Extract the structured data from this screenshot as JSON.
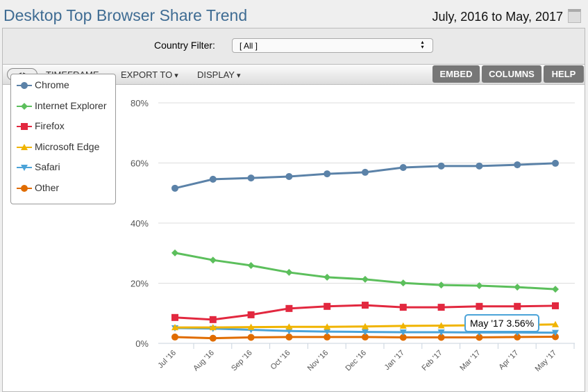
{
  "header": {
    "title": "Desktop Top Browser Share Trend",
    "date_range": "July, 2016 to May, 2017"
  },
  "filter": {
    "label": "Country Filter:",
    "value": "[ All ]"
  },
  "toolbar": {
    "timeframe": "TIMEFRAME",
    "export": "EXPORT TO",
    "display": "DISPLAY",
    "embed": "EMBED",
    "columns": "COLUMNS",
    "help": "HELP"
  },
  "tooltip": "May '17 3.56%",
  "chart_data": {
    "type": "line",
    "title": "Desktop Top Browser Share Trend",
    "xlabel": "",
    "ylabel": "",
    "ylim": [
      0,
      80
    ],
    "yticks": [
      "0%",
      "20%",
      "40%",
      "60%",
      "80%"
    ],
    "legend_position": "left",
    "categories": [
      "Jul '16",
      "Aug '16",
      "Sep '16",
      "Oct '16",
      "Nov '16",
      "Dec '16",
      "Jan '17",
      "Feb '17",
      "Mar '17",
      "Apr '17",
      "May '17"
    ],
    "series": [
      {
        "name": "Chrome",
        "color": "#5b82a8",
        "marker": "circle",
        "values": [
          51.6,
          54.6,
          55.0,
          55.5,
          56.4,
          56.9,
          58.5,
          59.0,
          59.0,
          59.4,
          59.9
        ]
      },
      {
        "name": "Internet Explorer",
        "color": "#5cbf5c",
        "marker": "diamond",
        "values": [
          30.1,
          27.7,
          25.9,
          23.6,
          22.0,
          21.3,
          20.1,
          19.4,
          19.2,
          18.7,
          18.0
        ]
      },
      {
        "name": "Firefox",
        "color": "#e2283f",
        "marker": "square",
        "values": [
          8.6,
          7.9,
          9.5,
          11.6,
          12.3,
          12.7,
          12.0,
          12.0,
          12.3,
          12.3,
          12.5
        ]
      },
      {
        "name": "Microsoft Edge",
        "color": "#f0b400",
        "marker": "triangle",
        "values": [
          5.3,
          5.3,
          5.4,
          5.5,
          5.5,
          5.6,
          5.8,
          5.9,
          6.0,
          6.1,
          6.3
        ]
      },
      {
        "name": "Safari",
        "color": "#4ba3d8",
        "marker": "triangle-down",
        "values": [
          5.1,
          4.9,
          4.5,
          4.1,
          3.9,
          3.8,
          3.7,
          3.7,
          3.6,
          3.6,
          3.56
        ]
      },
      {
        "name": "Other",
        "color": "#e06c00",
        "marker": "circle",
        "values": [
          2.1,
          1.7,
          2.0,
          2.1,
          2.1,
          2.1,
          2.0,
          2.0,
          2.0,
          2.1,
          2.2
        ]
      }
    ]
  }
}
